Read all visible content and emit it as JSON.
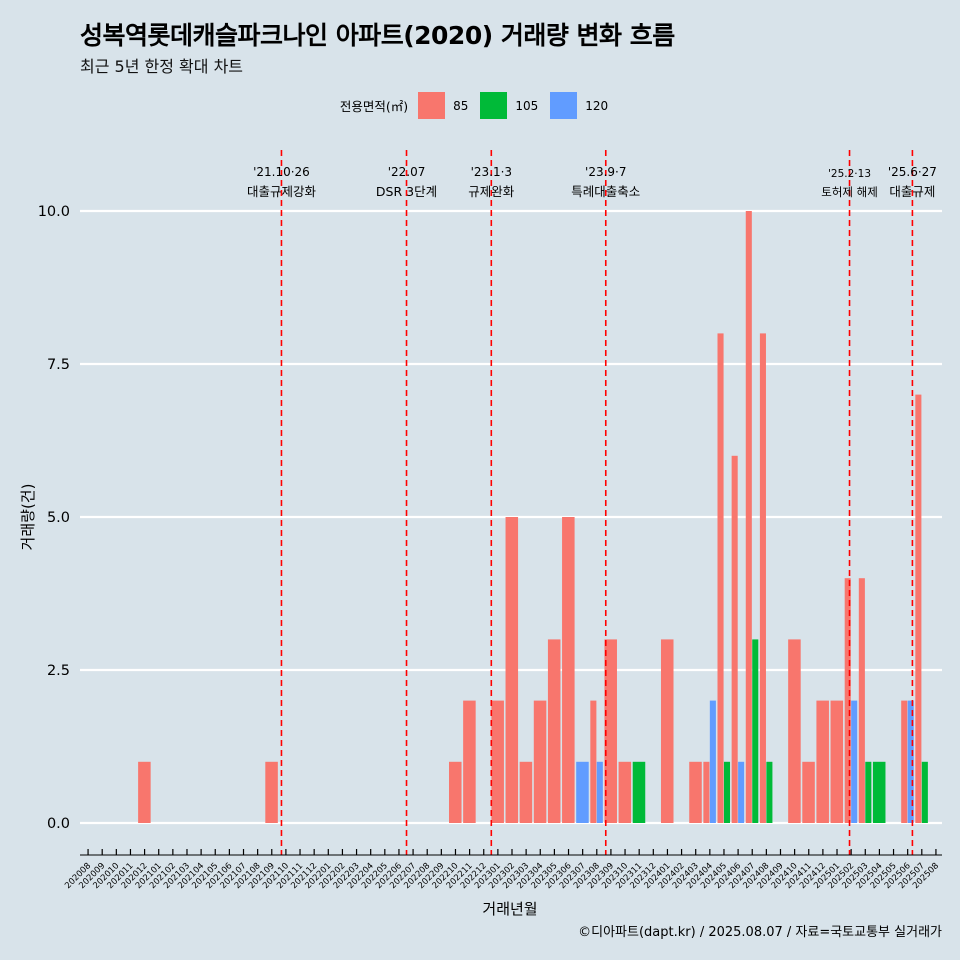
{
  "title": "성복역롯데캐슬파크나인 아파트(2020) 거래량 변화 흐름",
  "subtitle": "최근 5년 한정 확대 차트",
  "caption": "©디아파트(dapt.kr) / 2025.08.07 / 자료=국토교통부 실거래가",
  "legend": {
    "title": "전용면적(㎡)",
    "items": [
      {
        "label": "85",
        "color": "#F8766D"
      },
      {
        "label": "105",
        "color": "#00BA38"
      },
      {
        "label": "120",
        "color": "#619CFF"
      }
    ]
  },
  "chart_data": {
    "type": "bar",
    "xlabel": "거래년월",
    "ylabel": "거래량(건)",
    "ylim": [
      0,
      10
    ],
    "yticks": [
      "0.0",
      "2.5",
      "5.0",
      "7.5",
      "10.0"
    ],
    "grid": true,
    "legend_position": "top",
    "categories": [
      "202008",
      "202009",
      "202010",
      "202011",
      "202012",
      "202101",
      "202102",
      "202103",
      "202104",
      "202105",
      "202106",
      "202107",
      "202108",
      "202109",
      "202110",
      "202111",
      "202112",
      "202201",
      "202202",
      "202203",
      "202204",
      "202205",
      "202206",
      "202207",
      "202208",
      "202209",
      "202210",
      "202211",
      "202212",
      "202301",
      "202302",
      "202303",
      "202304",
      "202305",
      "202306",
      "202307",
      "202308",
      "202309",
      "202310",
      "202311",
      "202312",
      "202401",
      "202402",
      "202403",
      "202404",
      "202405",
      "202406",
      "202407",
      "202408",
      "202409",
      "202410",
      "202411",
      "202412",
      "202501",
      "202502",
      "202503",
      "202504",
      "202505",
      "202506",
      "202507",
      "202508"
    ],
    "series": [
      {
        "name": "85",
        "color": "#F8766D",
        "values": [
          0,
          0,
          0,
          0,
          1,
          0,
          0,
          0,
          0,
          0,
          0,
          0,
          0,
          1,
          0,
          0,
          0,
          0,
          0,
          0,
          0,
          0,
          0,
          0,
          0,
          0,
          1,
          2,
          0,
          2,
          5,
          1,
          2,
          3,
          5,
          0,
          2,
          3,
          1,
          0,
          0,
          3,
          0,
          1,
          1,
          8,
          6,
          10,
          8,
          0,
          3,
          1,
          2,
          2,
          4,
          4,
          0,
          0,
          2,
          7,
          0
        ]
      },
      {
        "name": "105",
        "color": "#00BA38",
        "values": [
          0,
          0,
          0,
          0,
          0,
          0,
          0,
          0,
          0,
          0,
          0,
          0,
          0,
          0,
          0,
          0,
          0,
          0,
          0,
          0,
          0,
          0,
          0,
          0,
          0,
          0,
          0,
          0,
          0,
          0,
          0,
          0,
          0,
          0,
          0,
          0,
          0,
          0,
          0,
          1,
          0,
          0,
          0,
          0,
          0,
          1,
          0,
          3,
          1,
          0,
          0,
          0,
          0,
          0,
          0,
          1,
          1,
          0,
          0,
          1,
          0
        ]
      },
      {
        "name": "120",
        "color": "#619CFF",
        "values": [
          0,
          0,
          0,
          0,
          0,
          0,
          0,
          0,
          0,
          0,
          0,
          0,
          0,
          0,
          0,
          0,
          0,
          0,
          0,
          0,
          0,
          0,
          0,
          0,
          0,
          0,
          0,
          0,
          0,
          0,
          0,
          0,
          0,
          0,
          0,
          1,
          1,
          0,
          0,
          0,
          0,
          0,
          0,
          0,
          2,
          0,
          1,
          0,
          0,
          0,
          0,
          0,
          0,
          0,
          2,
          0,
          0,
          0,
          2,
          0,
          0
        ]
      }
    ],
    "annotations": [
      {
        "date_label": "'21.10·26",
        "event": "대출규제강화",
        "at": "202110",
        "offset": 0.15
      },
      {
        "date_label": "'22.07",
        "event": "DSR 3단계",
        "at": "202207",
        "offset": 0
      },
      {
        "date_label": "'23.1·3",
        "event": "규제완화",
        "at": "202301",
        "offset": 0
      },
      {
        "date_label": "'23.9·7",
        "event": "특례대출축소",
        "at": "202309",
        "offset": 0.1
      },
      {
        "date_label": "'25.2·13",
        "event": "토허제 해제",
        "at": "202502",
        "offset": 0.35
      },
      {
        "date_label": "'25.6·27",
        "event": "대출규제",
        "at": "202506",
        "offset": 0.8
      }
    ]
  }
}
